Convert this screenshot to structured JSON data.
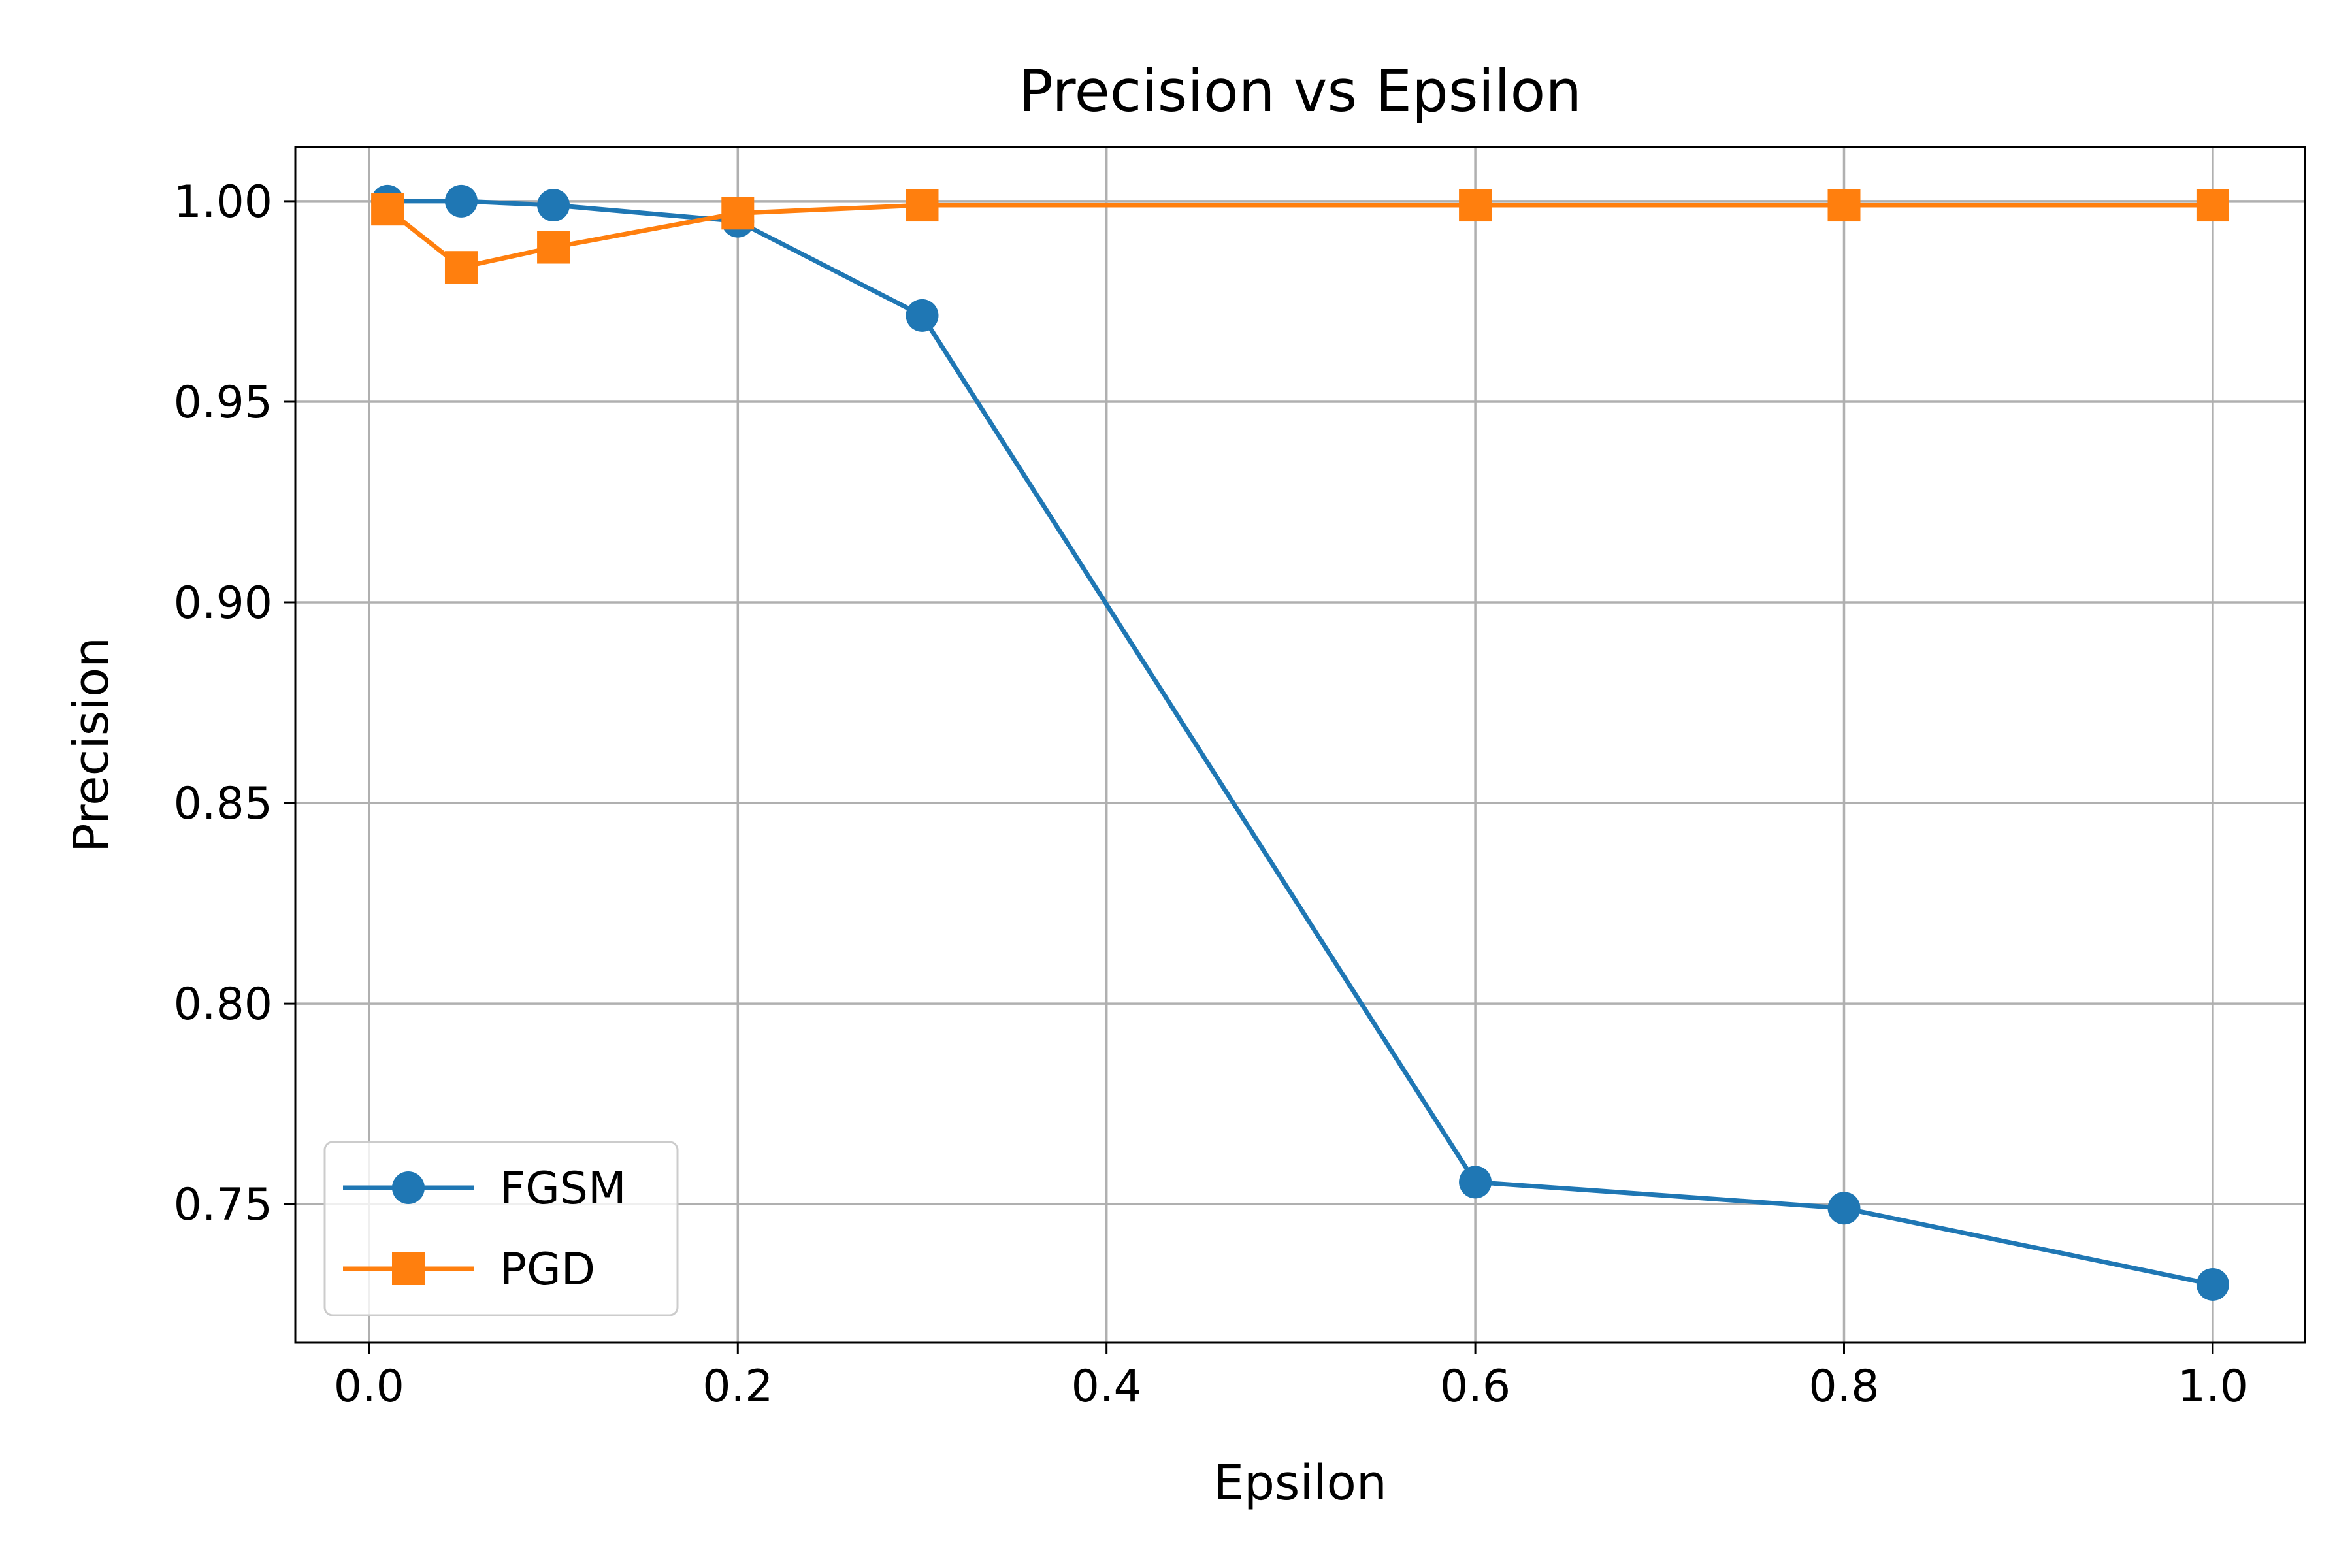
{
  "chart_data": {
    "type": "line",
    "title": "Precision vs Epsilon",
    "xlabel": "Epsilon",
    "ylabel": "Precision",
    "xlim": [
      -0.04,
      1.05
    ],
    "ylim": [
      0.7155,
      1.0135
    ],
    "grid": true,
    "legend_position": "lower-left",
    "x_ticks": [
      "0.0",
      "0.2",
      "0.4",
      "0.6",
      "0.8",
      "1.0"
    ],
    "y_ticks": [
      "0.75",
      "0.80",
      "0.85",
      "0.90",
      "0.95",
      "1.00"
    ],
    "series": [
      {
        "name": "FGSM",
        "color": "#1f77b4",
        "marker": "circle",
        "x": [
          0.01,
          0.05,
          0.1,
          0.2,
          0.3,
          0.6,
          0.8,
          1.0
        ],
        "y": [
          1.0,
          1.0,
          0.999,
          0.995,
          0.9715,
          0.7555,
          0.749,
          0.73
        ]
      },
      {
        "name": "PGD",
        "color": "#ff7f0e",
        "marker": "square",
        "x": [
          0.01,
          0.05,
          0.1,
          0.2,
          0.3,
          0.6,
          0.8,
          1.0
        ],
        "y": [
          0.998,
          0.9835,
          0.9885,
          0.997,
          0.999,
          0.999,
          0.999,
          0.999
        ]
      }
    ]
  }
}
